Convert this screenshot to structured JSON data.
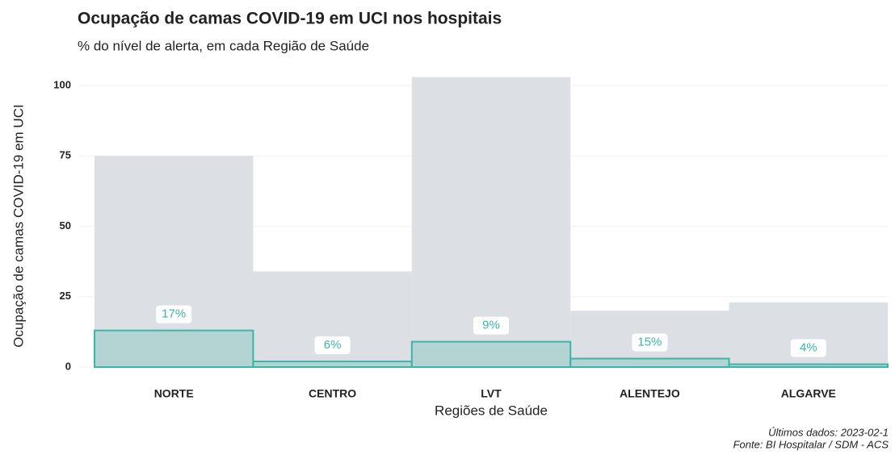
{
  "chart_data": {
    "type": "bar",
    "title": "Ocupação de camas COVID-19 em UCI nos hospitais",
    "subtitle": "% do nível de alerta, em cada Região de Saúde",
    "x_label": "Regiões de Saúde",
    "y_label": "Ocupação de camas COVID-19 em UCI",
    "caption": [
      "Últimos dados: 2023-02-1",
      "Fonte: BI Hospitalar / SDM - ACS"
    ],
    "categories": [
      "NORTE",
      "CENTRO",
      "LVT",
      "ALENTEJO",
      "ALGARVE"
    ],
    "series": [
      {
        "color": "#dcdfe3",
        "values": [
          75,
          34,
          103,
          20,
          23
        ]
      },
      {
        "color": "#3db5a6",
        "values": [
          13,
          2,
          9,
          3,
          1
        ]
      }
    ],
    "percent_labels": {
      "values": [
        17,
        6,
        9,
        15,
        4
      ],
      "value_labels": [
        "17%",
        "6%",
        "9%",
        "15%",
        "4%"
      ]
    },
    "ylim": [
      0,
      100
    ],
    "yticks": [
      0,
      25,
      50,
      75,
      100
    ],
    "grid": true
  }
}
